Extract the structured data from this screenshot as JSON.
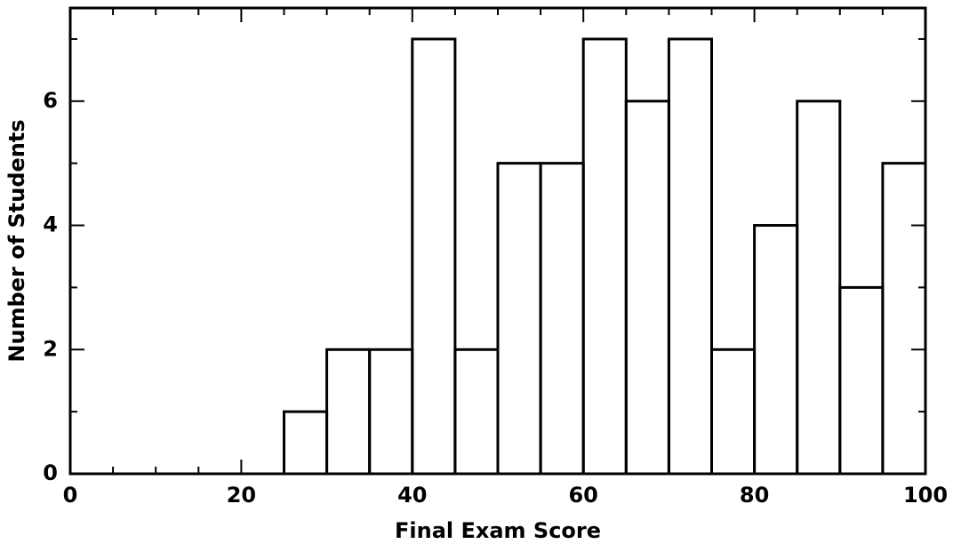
{
  "chart_data": {
    "type": "histogram",
    "xlabel": "Final Exam Score",
    "ylabel": "Number of Students",
    "bins": [
      0,
      5,
      10,
      15,
      20,
      25,
      30,
      35,
      40,
      45,
      50,
      55,
      60,
      65,
      70,
      75,
      80,
      85,
      90,
      95,
      100
    ],
    "values": [
      0,
      0,
      0,
      0,
      0,
      1,
      2,
      2,
      7,
      2,
      5,
      5,
      7,
      6,
      7,
      2,
      4,
      6,
      3,
      5
    ],
    "color": "#000000",
    "xlim": [
      0,
      100
    ],
    "xticks": [
      0,
      20,
      40,
      60,
      80,
      100
    ],
    "ylim": [
      0,
      7.5
    ],
    "yticks": [
      0,
      2,
      4,
      6
    ]
  }
}
